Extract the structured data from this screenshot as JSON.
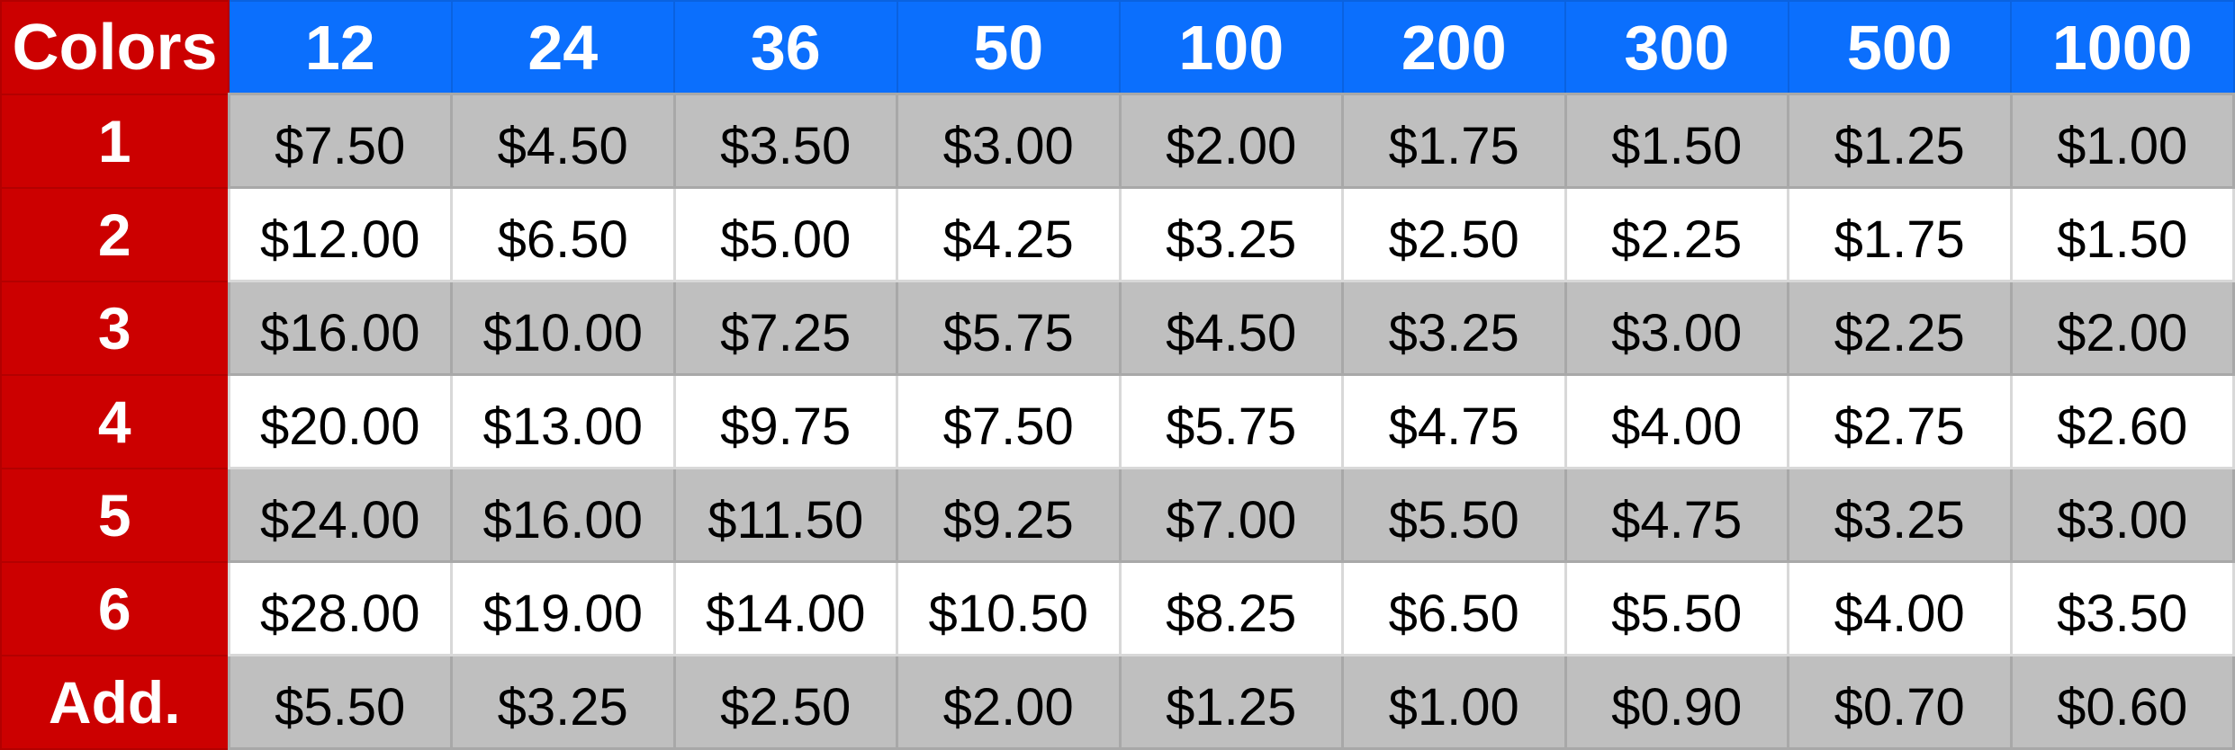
{
  "table": {
    "corner_label": "Colors",
    "quantities": [
      "12",
      "24",
      "36",
      "50",
      "100",
      "200",
      "300",
      "500",
      "1000"
    ],
    "rows": [
      {
        "label": "1",
        "prices": [
          "$7.50",
          "$4.50",
          "$3.50",
          "$3.00",
          "$2.00",
          "$1.75",
          "$1.50",
          "$1.25",
          "$1.00"
        ]
      },
      {
        "label": "2",
        "prices": [
          "$12.00",
          "$6.50",
          "$5.00",
          "$4.25",
          "$3.25",
          "$2.50",
          "$2.25",
          "$1.75",
          "$1.50"
        ]
      },
      {
        "label": "3",
        "prices": [
          "$16.00",
          "$10.00",
          "$7.25",
          "$5.75",
          "$4.50",
          "$3.25",
          "$3.00",
          "$2.25",
          "$2.00"
        ]
      },
      {
        "label": "4",
        "prices": [
          "$20.00",
          "$13.00",
          "$9.75",
          "$7.50",
          "$5.75",
          "$4.75",
          "$4.00",
          "$2.75",
          "$2.60"
        ]
      },
      {
        "label": "5",
        "prices": [
          "$24.00",
          "$16.00",
          "$11.50",
          "$9.25",
          "$7.00",
          "$5.50",
          "$4.75",
          "$3.25",
          "$3.00"
        ]
      },
      {
        "label": "6",
        "prices": [
          "$28.00",
          "$19.00",
          "$14.00",
          "$10.50",
          "$8.25",
          "$6.50",
          "$5.50",
          "$4.00",
          "$3.50"
        ]
      },
      {
        "label": "Add.",
        "prices": [
          "$5.50",
          "$3.25",
          "$2.50",
          "$2.00",
          "$1.25",
          "$1.00",
          "$0.90",
          "$0.70",
          "$0.60"
        ]
      }
    ]
  },
  "colors": {
    "row_header": "#cc0000",
    "column_header": "#0b6ffd",
    "shaded_row": "#bfbfbf",
    "plain_row": "#ffffff"
  }
}
